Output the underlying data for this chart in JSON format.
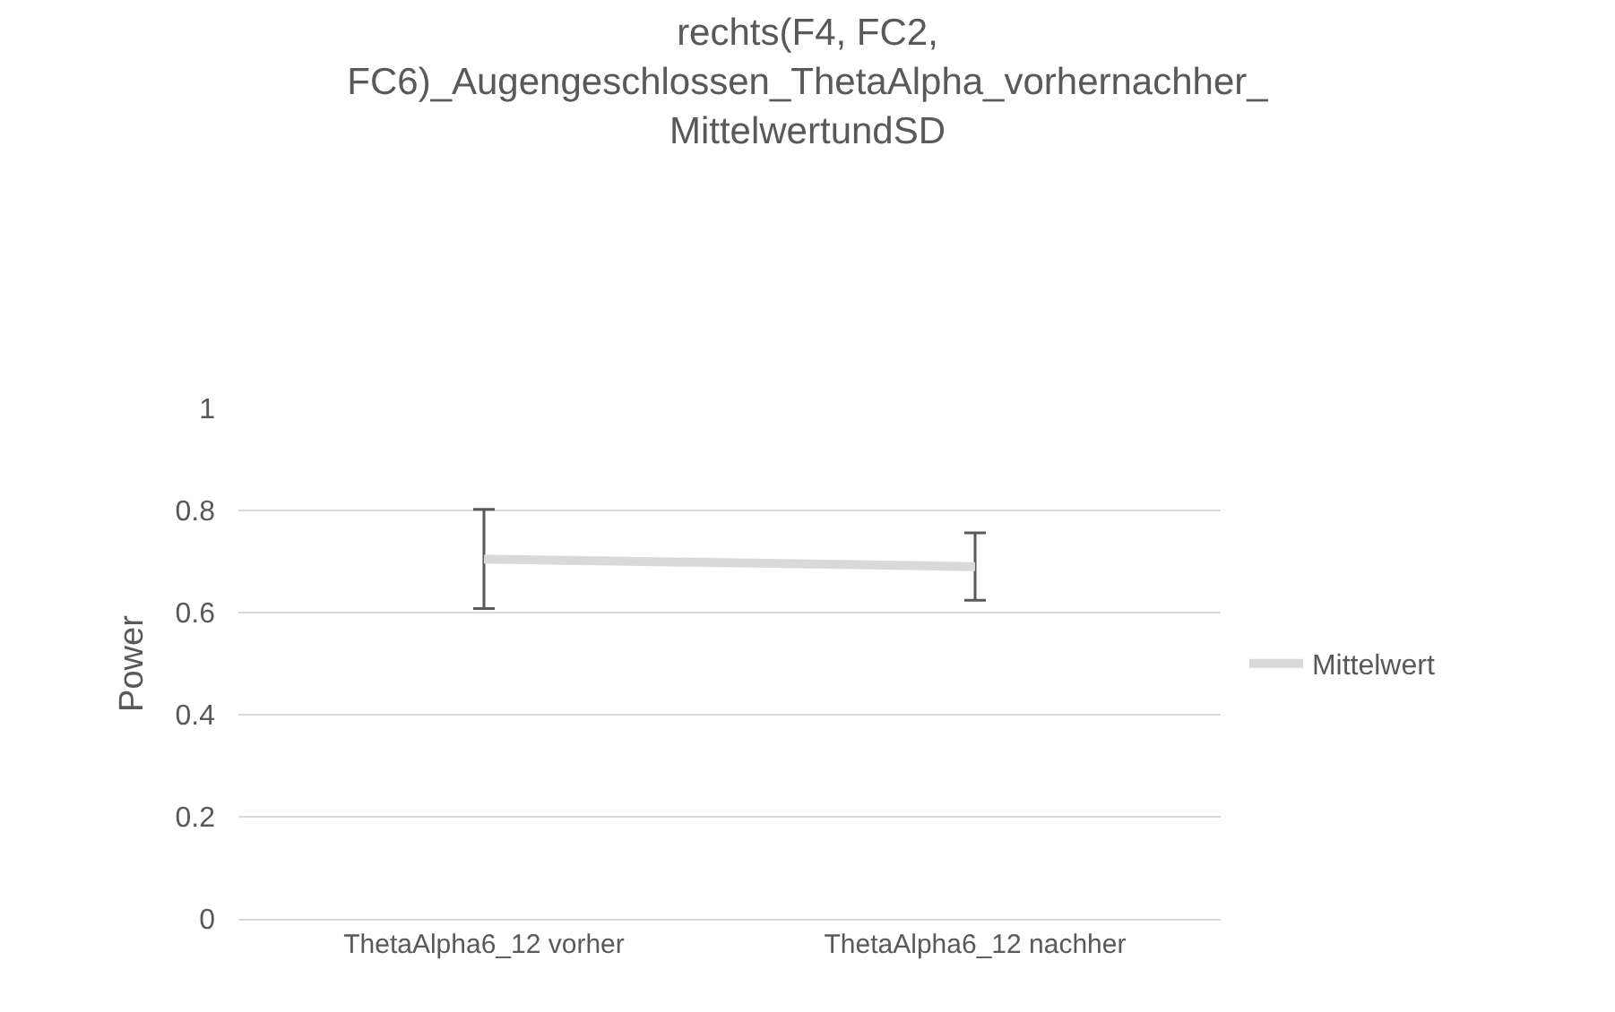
{
  "chart_data": {
    "type": "line",
    "title": "rechts(F4, FC2,\nFC6)_Augengeschlossen_ThetaAlpha_vorhernachher_\nMittelwertundSD",
    "ylabel": "Power",
    "categories": [
      "ThetaAlpha6_12 vorher",
      "ThetaAlpha6_12 nachher"
    ],
    "series": [
      {
        "name": "Mittelwert",
        "color": "#d9d9d9",
        "values": [
          0.705,
          0.69
        ],
        "errors": [
          0.097,
          0.066
        ]
      }
    ],
    "ylim": [
      0,
      1
    ],
    "yticks": [
      0,
      0.2,
      0.4,
      0.6,
      0.8,
      1
    ],
    "grid": "y",
    "legend": "right",
    "marker": "none",
    "line_style": "solid"
  }
}
